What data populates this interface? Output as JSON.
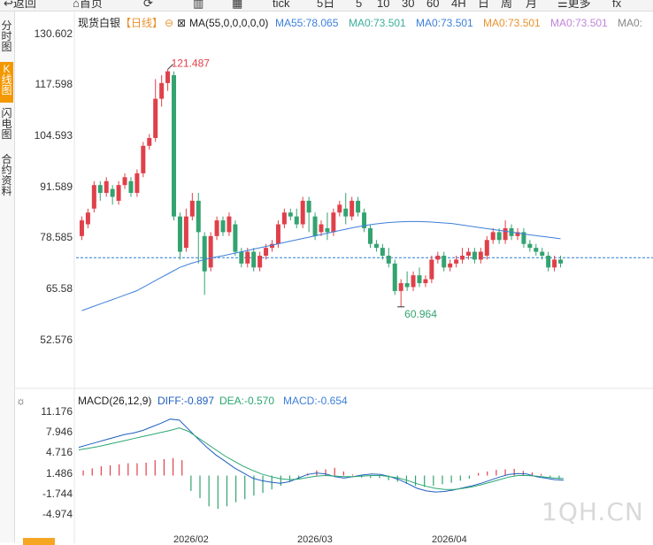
{
  "toolbar": {
    "items": [
      "返回",
      "首页",
      "",
      "",
      "tick",
      "5日",
      "5",
      "10",
      "30",
      "60",
      "4H",
      "日",
      "周",
      "月",
      "更多",
      "fx"
    ]
  },
  "side_tabs": [
    "分时图",
    "K线图",
    "闪电图",
    "合约资料"
  ],
  "chart_header": {
    "symbol": "现货白银",
    "period": "【日线】",
    "indicator": "MA(55,0,0,0,0,0)",
    "ma_values": [
      "MA55:78.065",
      "MA0:73.501",
      "MA0:73.501",
      "MA0:73.501",
      "MA0:73.501",
      "MA0:"
    ],
    "ma_colors": [
      "#3d7fd9",
      "#3dae9b",
      "#3d7fd9",
      "#e8922f",
      "#c084d8",
      "#888888"
    ]
  },
  "macd_header": {
    "title": "MACD(26,12,9)",
    "diff": "DIFF:-0.897",
    "dea": "DEA:-0.570",
    "macd": "MACD:-0.654"
  },
  "x_labels": [
    "2026/02",
    "2026/03",
    "2026/04"
  ],
  "watermark": "1QH.CN",
  "colors": {
    "up": "#e0404a",
    "down": "#33a370",
    "ma55": "#3d7fd9",
    "diff": "#1f5fbf",
    "dea": "#2aa772",
    "ref": "#2b7bd6"
  },
  "chart_data": [
    {
      "type": "candlestick",
      "title": "现货白银【日线】",
      "y_ticks": [
        130.602,
        117.598,
        104.593,
        91.589,
        78.585,
        65.58,
        52.576
      ],
      "ylim": [
        52.576,
        130.602
      ],
      "reference_price": 73.501,
      "annotations": [
        {
          "text": "121.487",
          "value": 121.487
        },
        {
          "text": "60.964",
          "value": 60.964
        }
      ],
      "candles": [
        [
          79,
          83,
          78,
          84
        ],
        [
          82,
          85,
          81,
          86
        ],
        [
          86,
          92,
          85,
          93
        ],
        [
          92,
          90,
          88,
          93
        ],
        [
          90,
          93,
          89,
          94
        ],
        [
          91,
          89,
          87,
          92
        ],
        [
          88,
          92,
          87,
          93
        ],
        [
          92,
          94,
          91,
          95
        ],
        [
          93,
          90,
          89,
          94
        ],
        [
          90,
          95,
          89,
          96
        ],
        [
          95,
          102,
          94,
          103
        ],
        [
          102,
          104,
          101,
          105
        ],
        [
          104,
          114,
          103,
          119
        ],
        [
          114,
          118,
          112,
          120
        ],
        [
          118,
          121,
          116,
          121.5
        ],
        [
          120,
          84,
          83,
          121
        ],
        [
          84,
          75,
          73,
          85
        ],
        [
          76,
          84,
          75,
          86
        ],
        [
          84,
          88,
          83,
          90
        ],
        [
          88,
          80,
          72,
          90
        ],
        [
          79,
          70,
          64,
          80
        ],
        [
          71,
          79,
          70,
          80
        ],
        [
          79,
          83,
          78,
          84
        ],
        [
          83,
          80,
          79,
          84
        ],
        [
          80,
          84,
          79,
          85
        ],
        [
          82,
          75,
          74,
          83
        ],
        [
          75,
          72,
          71,
          76
        ],
        [
          72,
          75,
          71,
          76
        ],
        [
          75,
          71,
          70,
          76
        ],
        [
          71,
          74,
          70,
          75
        ],
        [
          74,
          76,
          73,
          77
        ],
        [
          76,
          77,
          75,
          78
        ],
        [
          77,
          82,
          76,
          83
        ],
        [
          82,
          85,
          81,
          86
        ],
        [
          85,
          84,
          83,
          86
        ],
        [
          84,
          82,
          81,
          86
        ],
        [
          82,
          88,
          81,
          89
        ],
        [
          88,
          85,
          80,
          89
        ],
        [
          84,
          79,
          78,
          85
        ],
        [
          80,
          82,
          79,
          83
        ],
        [
          81,
          80,
          78,
          85
        ],
        [
          80,
          85,
          79,
          86
        ],
        [
          85,
          87,
          84,
          88
        ],
        [
          86,
          84,
          82,
          90
        ],
        [
          84,
          88,
          83,
          89
        ],
        [
          88,
          85,
          84,
          89
        ],
        [
          85,
          81,
          80,
          86
        ],
        [
          81,
          77,
          76,
          82
        ],
        [
          77,
          76,
          75,
          78
        ],
        [
          76,
          74,
          73,
          77
        ],
        [
          74,
          72,
          71,
          76
        ],
        [
          72,
          65,
          64,
          73
        ],
        [
          65,
          67,
          61,
          68
        ],
        [
          67,
          66,
          65,
          70
        ],
        [
          66,
          69,
          65,
          70
        ],
        [
          69,
          67,
          66,
          71
        ],
        [
          67,
          68,
          66,
          69
        ],
        [
          68,
          73,
          67,
          74
        ],
        [
          73,
          74,
          72,
          75
        ],
        [
          74,
          71,
          70,
          75
        ],
        [
          71,
          72,
          70,
          73
        ],
        [
          72,
          73,
          71,
          74
        ],
        [
          73,
          74,
          72,
          76
        ],
        [
          74,
          75,
          73,
          76
        ],
        [
          75,
          73,
          72,
          76
        ],
        [
          73,
          75,
          72,
          76
        ],
        [
          74,
          78,
          73,
          79
        ],
        [
          78,
          80,
          77,
          81
        ],
        [
          80,
          78,
          77,
          81
        ],
        [
          78,
          81,
          77,
          83
        ],
        [
          81,
          79,
          78,
          82
        ],
        [
          79,
          80,
          78,
          81
        ],
        [
          80,
          77,
          76,
          81
        ],
        [
          77,
          76,
          75,
          78
        ],
        [
          76,
          75,
          74,
          77
        ],
        [
          75,
          74,
          73,
          76
        ],
        [
          74,
          71,
          70,
          75
        ],
        [
          71,
          73,
          70,
          74
        ],
        [
          73,
          72,
          71,
          74
        ]
      ],
      "ma55": [
        60,
        61,
        62,
        63,
        64,
        65,
        66.5,
        68,
        69.5,
        71,
        72,
        72.8,
        73.5,
        74,
        74.6,
        75.2,
        75.8,
        76.4,
        77,
        77.6,
        78.2,
        78.8,
        79.4,
        80,
        80.6,
        81.2,
        81.7,
        82.1,
        82.4,
        82.6,
        82.7,
        82.7,
        82.6,
        82.4,
        82.2,
        81.8,
        81.4,
        81,
        80.6,
        80.2,
        79.8,
        79.4,
        79,
        78.7,
        78.3
      ]
    },
    {
      "type": "macd",
      "title": "MACD(26,12,9)",
      "y_ticks": [
        11.176,
        7.946,
        4.716,
        1.486,
        -1.744,
        -4.974
      ],
      "ylim": [
        -7.5,
        12.5
      ],
      "diff": [
        5.5,
        6,
        6.5,
        7,
        7.5,
        8,
        8.3,
        8.8,
        9.5,
        10.2,
        11,
        10.8,
        9,
        7.2,
        5.5,
        4,
        2.8,
        1.5,
        0.5,
        -0.5,
        -1,
        -1.3,
        -1.5,
        -1.2,
        -0.5,
        0.2,
        0.5,
        0.3,
        -0.2,
        -0.5,
        -0.2,
        0.1,
        0.3,
        0.2,
        -0.2,
        -0.8,
        -1.6,
        -2.5,
        -3,
        -3.2,
        -3.1,
        -2.8,
        -2.4,
        -2,
        -1.5,
        -0.9,
        -0.3,
        0.2,
        0.4,
        0.3,
        -0.2,
        -0.5,
        -0.8,
        -0.9
      ],
      "dea": [
        5,
        5.3,
        5.6,
        6,
        6.4,
        6.8,
        7.2,
        7.6,
        8,
        8.4,
        8.8,
        9.3,
        8.6,
        7.4,
        6.2,
        5,
        3.8,
        2.8,
        1.8,
        1,
        0.3,
        -0.2,
        -0.6,
        -0.8,
        -0.7,
        -0.4,
        -0.1,
        0,
        -0.1,
        -0.2,
        -0.2,
        -0.1,
        0,
        0,
        -0.2,
        -0.5,
        -1,
        -1.6,
        -2.1,
        -2.5,
        -2.7,
        -2.7,
        -2.5,
        -2.2,
        -1.8,
        -1.3,
        -0.8,
        -0.3,
        0,
        0,
        -0.1,
        -0.3,
        -0.5,
        -0.57
      ],
      "hist": [
        1,
        1.4,
        1.8,
        2,
        2.2,
        2.4,
        2.4,
        2.5,
        3,
        3.2,
        3.4,
        3,
        -3,
        -4.4,
        -6,
        -6.5,
        -6,
        -5.2,
        -4.6,
        -3.9,
        -3.4,
        -2.7,
        -2,
        -1.2,
        -0.6,
        0.4,
        1,
        1.2,
        1.5,
        0.8,
        0.2,
        -0.4,
        -0.5,
        -0.5,
        -0.9,
        -1.2,
        -1.6,
        -2,
        -2.2,
        -2,
        -1.7,
        -1.4,
        -1,
        -0.6,
        0.5,
        0.8,
        1.1,
        1.2,
        1.3,
        0.9,
        0.6,
        0.3,
        -0.4,
        -0.654
      ]
    }
  ]
}
